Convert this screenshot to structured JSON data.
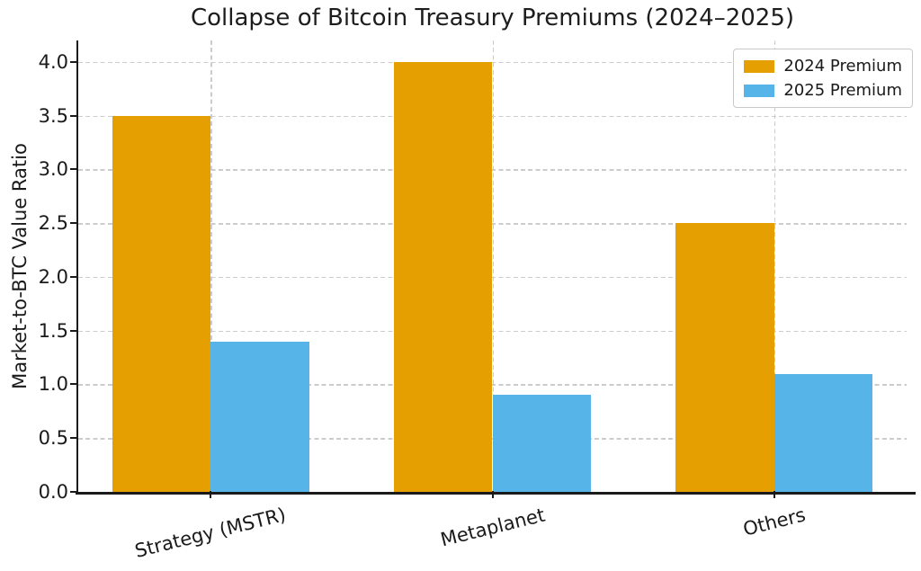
{
  "chart_data": {
    "type": "bar",
    "title": "Collapse of Bitcoin Treasury Premiums (2024–2025)",
    "ylabel": "Market-to-BTC Value Ratio",
    "xlabel": "",
    "categories": [
      "Strategy (MSTR)",
      "Metaplanet",
      "Others"
    ],
    "series": [
      {
        "name": "2024 Premium",
        "color": "#E69F00",
        "values": [
          3.5,
          4.0,
          2.5
        ]
      },
      {
        "name": "2025 Premium",
        "color": "#56B4E9",
        "values": [
          1.4,
          0.9,
          1.1
        ]
      }
    ],
    "yticks": [
      "0.0",
      "0.5",
      "1.0",
      "1.5",
      "2.0",
      "2.5",
      "3.0",
      "3.5",
      "4.0"
    ],
    "ylim": [
      0,
      4.2
    ],
    "bar_width": 0.35,
    "grid": "dashed, horizontal at yticks and vertical at category centers",
    "legend_position": "upper right",
    "x_tick_rotation_deg": 14
  },
  "colors": {
    "text": "#1a1a1a",
    "grid": "#cccccc",
    "spine": "#1a1a1a",
    "legend_border": "#c9c9c9",
    "background": "#ffffff"
  }
}
